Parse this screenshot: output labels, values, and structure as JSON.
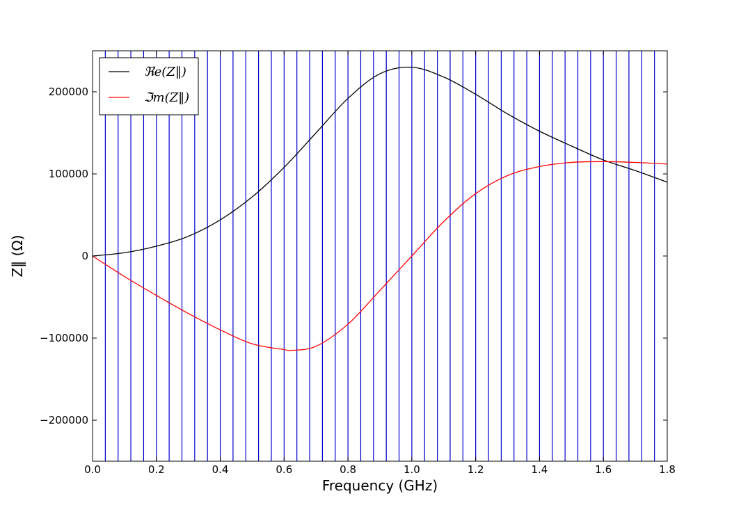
{
  "chart_data": {
    "type": "line",
    "title": "",
    "xlabel": "Frequency (GHz)",
    "ylabel": "Z‖ (Ω)",
    "xlim": [
      0.0,
      1.8
    ],
    "ylim": [
      -250000,
      250000
    ],
    "x_ticks": [
      0.0,
      0.2,
      0.4,
      0.6,
      0.8,
      1.0,
      1.2,
      1.4,
      1.6,
      1.8
    ],
    "x_tick_labels": [
      "0.0",
      "0.2",
      "0.4",
      "0.6",
      "0.8",
      "1.0",
      "1.2",
      "1.4",
      "1.6",
      "1.8"
    ],
    "y_ticks": [
      -200000,
      -100000,
      0,
      100000,
      200000
    ],
    "y_tick_labels": [
      "−200000",
      "−100000",
      "0",
      "100000",
      "200000"
    ],
    "grid": false,
    "legend_position": "top-left",
    "vertical_lines": {
      "color": "#0000cc",
      "x": [
        0.04,
        0.08,
        0.12,
        0.16,
        0.2,
        0.24,
        0.28,
        0.32,
        0.36,
        0.4,
        0.44,
        0.48,
        0.52,
        0.56,
        0.6,
        0.64,
        0.68,
        0.72,
        0.76,
        0.8,
        0.84,
        0.88,
        0.92,
        0.96,
        1.0,
        1.04,
        1.08,
        1.12,
        1.16,
        1.2,
        1.24,
        1.28,
        1.32,
        1.36,
        1.4,
        1.44,
        1.48,
        1.52,
        1.56,
        1.6,
        1.64,
        1.68,
        1.72,
        1.76
      ]
    },
    "series": [
      {
        "name": "ℜe(Z‖)",
        "color": "#000000",
        "x": [
          0.0,
          0.1,
          0.2,
          0.3,
          0.4,
          0.5,
          0.6,
          0.7,
          0.8,
          0.9,
          1.0,
          1.1,
          1.2,
          1.3,
          1.4,
          1.5,
          1.6,
          1.7,
          1.8
        ],
        "values": [
          0,
          4000,
          12000,
          24000,
          44000,
          72000,
          108000,
          150000,
          192000,
          222000,
          230000,
          218000,
          197000,
          173000,
          152000,
          134000,
          117000,
          104000,
          90000
        ]
      },
      {
        "name": "ℑm(Z‖)",
        "color": "#ff0000",
        "x": [
          0.0,
          0.1,
          0.2,
          0.3,
          0.4,
          0.5,
          0.6,
          0.62,
          0.7,
          0.8,
          0.9,
          1.0,
          1.1,
          1.2,
          1.3,
          1.4,
          1.5,
          1.6,
          1.7,
          1.8
        ],
        "values": [
          0,
          -25000,
          -48000,
          -70000,
          -90000,
          -107000,
          -114000,
          -115000,
          -110000,
          -83000,
          -42000,
          0,
          42000,
          76000,
          98000,
          109000,
          114000,
          115000,
          114000,
          112000
        ]
      }
    ]
  }
}
